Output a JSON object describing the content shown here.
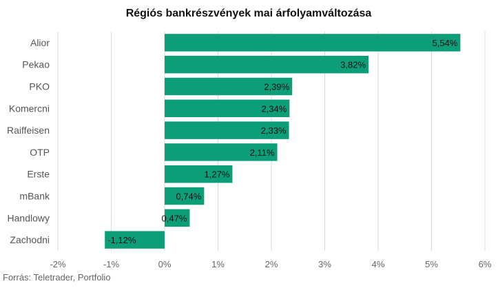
{
  "chart_data": {
    "type": "bar",
    "orientation": "horizontal",
    "title": "Régiós bankrészvények mai árfolyamváltozása",
    "categories": [
      "Alior",
      "Pekao",
      "PKO",
      "Komercni",
      "Raiffeisen",
      "OTP",
      "Erste",
      "mBank",
      "Handlowy",
      "Zachodni"
    ],
    "values": [
      5.54,
      3.82,
      2.39,
      2.34,
      2.33,
      2.11,
      1.27,
      0.74,
      0.47,
      -1.12
    ],
    "value_labels": [
      "5,54%",
      "3,82%",
      "2,39%",
      "2,34%",
      "2,33%",
      "2,11%",
      "1,27%",
      "0,74%",
      "0,47%",
      "-1,12%"
    ],
    "xlim": [
      -2,
      6
    ],
    "xticks": [
      -2,
      -1,
      0,
      1,
      2,
      3,
      4,
      5,
      6
    ],
    "xtick_labels": [
      "-2%",
      "-1%",
      "0%",
      "1%",
      "2%",
      "3%",
      "4%",
      "5%",
      "6%"
    ],
    "grid": "vertical",
    "legend": "none",
    "bar_color": "#0b9e78",
    "source": "Forrás: Teletrader, Portfolio"
  }
}
